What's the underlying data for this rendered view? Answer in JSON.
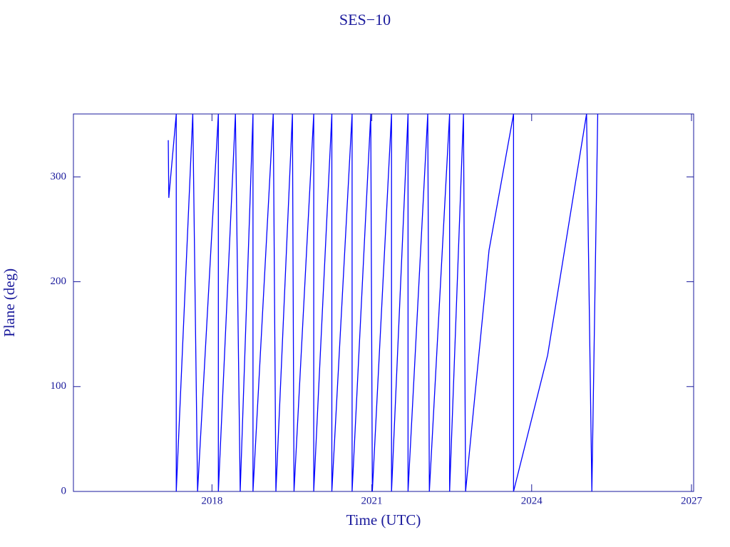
{
  "chart_data": {
    "type": "line",
    "title": "SES−10",
    "x_label": "Time (UTC)",
    "y_label": "Plane (deg)",
    "color": "#0000ff",
    "x": [
      2017.18,
      2017.19,
      2017.33,
      2017.33,
      2017.64,
      2017.73,
      2018.12,
      2018.12,
      2018.44,
      2018.53,
      2018.77,
      2018.77,
      2019.15,
      2019.2,
      2019.51,
      2019.54,
      2019.91,
      2019.91,
      2020.25,
      2020.25,
      2020.63,
      2020.63,
      2020.98,
      2021.01,
      2021.37,
      2021.37,
      2021.68,
      2021.68,
      2022.05,
      2022.08,
      2022.46,
      2022.46,
      2022.72,
      2022.76,
      2023.2,
      2023.66,
      2023.66,
      2024.3,
      2025.03,
      2025.13,
      2025.24
    ],
    "values": [
      335,
      280,
      360,
      0,
      360,
      0,
      360,
      0,
      360,
      0,
      360,
      0,
      360,
      0,
      360,
      0,
      360,
      0,
      360,
      0,
      360,
      0,
      360,
      0,
      360,
      0,
      360,
      0,
      360,
      0,
      360,
      0,
      360,
      0,
      230,
      360,
      0,
      130,
      360,
      0,
      360
    ],
    "xlim": [
      2015.4,
      2027.04
    ],
    "ylim": [
      0,
      360
    ],
    "xticks": [
      2018,
      2021,
      2024,
      2027
    ],
    "yticks": [
      0,
      100,
      200,
      300
    ]
  }
}
